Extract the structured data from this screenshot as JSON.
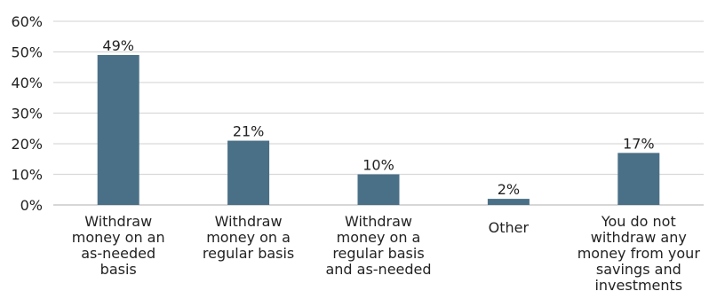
{
  "chart_data": {
    "type": "bar",
    "categories": [
      [
        "Withdraw",
        "money on an",
        "as-needed",
        "basis"
      ],
      [
        "Withdraw",
        "money on a",
        "regular basis"
      ],
      [
        "Withdraw",
        "money on a",
        "regular basis",
        "and as-needed"
      ],
      [
        "Other"
      ],
      [
        "You do not",
        "withdraw any",
        "money from your",
        "savings and",
        "investments"
      ]
    ],
    "values": [
      49,
      21,
      10,
      2,
      17
    ],
    "data_labels": [
      "49%",
      "21%",
      "10%",
      "2%",
      "17%"
    ],
    "ylim": [
      0,
      60
    ],
    "yticks": [
      0,
      10,
      20,
      30,
      40,
      50,
      60
    ],
    "ytick_labels": [
      "0%",
      "10%",
      "20%",
      "30%",
      "40%",
      "50%",
      "60%"
    ],
    "bar_color": "#4a7087",
    "grid": true,
    "legend": "none"
  }
}
